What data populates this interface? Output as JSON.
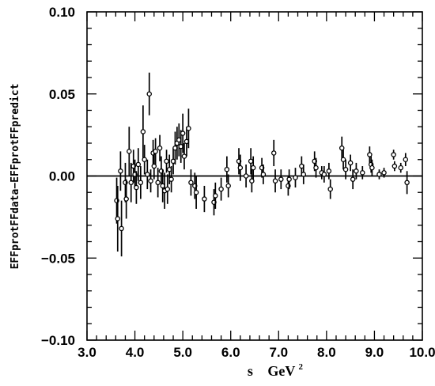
{
  "chart_data": {
    "type": "scatter",
    "xlabel": "s",
    "xunit": "GeV",
    "xunit_power": "2",
    "ylabel": "EFFprotFFdata−EFFprotFFpredict",
    "xlim": [
      3.0,
      10.0
    ],
    "ylim": [
      -0.1,
      0.1
    ],
    "xticks": [
      "3.0",
      "4.0",
      "5.0",
      "6.0",
      "7.0",
      "8.0",
      "9.0",
      "10.0"
    ],
    "yticks": [
      "0.10",
      "0.05",
      "0.00",
      "−0.05",
      "−0.10"
    ],
    "xtick_values": [
      3,
      4,
      5,
      6,
      7,
      8,
      9,
      10
    ],
    "ytick_values": [
      0.1,
      0.05,
      0.0,
      -0.05,
      -0.1
    ],
    "reference_line": 0.0,
    "grid": false,
    "points": [
      {
        "x": 3.62,
        "y": -0.015,
        "err": 0.014
      },
      {
        "x": 3.64,
        "y": -0.026,
        "err": 0.02
      },
      {
        "x": 3.7,
        "y": 0.003,
        "err": 0.012
      },
      {
        "x": 3.72,
        "y": -0.032,
        "err": 0.017
      },
      {
        "x": 3.8,
        "y": -0.004,
        "err": 0.012
      },
      {
        "x": 3.82,
        "y": -0.014,
        "err": 0.012
      },
      {
        "x": 3.88,
        "y": 0.015,
        "err": 0.015
      },
      {
        "x": 3.92,
        "y": -0.004,
        "err": 0.012
      },
      {
        "x": 3.97,
        "y": 0.006,
        "err": 0.01
      },
      {
        "x": 4.0,
        "y": 0.001,
        "err": 0.009
      },
      {
        "x": 4.03,
        "y": -0.007,
        "err": 0.01
      },
      {
        "x": 4.07,
        "y": 0.007,
        "err": 0.01
      },
      {
        "x": 4.12,
        "y": -0.004,
        "err": 0.01
      },
      {
        "x": 4.17,
        "y": 0.027,
        "err": 0.016
      },
      {
        "x": 4.2,
        "y": 0.01,
        "err": 0.009
      },
      {
        "x": 4.26,
        "y": 0.001,
        "err": 0.009
      },
      {
        "x": 4.3,
        "y": 0.05,
        "err": 0.013
      },
      {
        "x": 4.33,
        "y": -0.003,
        "err": 0.007
      },
      {
        "x": 4.38,
        "y": 0.014,
        "err": 0.008
      },
      {
        "x": 4.4,
        "y": 0.006,
        "err": 0.008
      },
      {
        "x": 4.43,
        "y": 0.015,
        "err": 0.008
      },
      {
        "x": 4.48,
        "y": -0.004,
        "err": 0.009
      },
      {
        "x": 4.52,
        "y": 0.017,
        "err": 0.008
      },
      {
        "x": 4.55,
        "y": 0.003,
        "err": 0.009
      },
      {
        "x": 4.58,
        "y": -0.006,
        "err": 0.01
      },
      {
        "x": 4.62,
        "y": -0.009,
        "err": 0.011
      },
      {
        "x": 4.66,
        "y": 0.009,
        "err": 0.007
      },
      {
        "x": 4.68,
        "y": -0.008,
        "err": 0.009
      },
      {
        "x": 4.72,
        "y": 0.004,
        "err": 0.009
      },
      {
        "x": 4.76,
        "y": -0.002,
        "err": 0.008
      },
      {
        "x": 4.8,
        "y": 0.009,
        "err": 0.008
      },
      {
        "x": 4.84,
        "y": 0.017,
        "err": 0.01
      },
      {
        "x": 4.88,
        "y": 0.02,
        "err": 0.01
      },
      {
        "x": 4.92,
        "y": 0.022,
        "err": 0.01
      },
      {
        "x": 4.96,
        "y": 0.018,
        "err": 0.01
      },
      {
        "x": 5.0,
        "y": 0.026,
        "err": 0.012
      },
      {
        "x": 5.03,
        "y": 0.012,
        "err": 0.008
      },
      {
        "x": 5.08,
        "y": 0.021,
        "err": 0.009
      },
      {
        "x": 5.12,
        "y": 0.029,
        "err": 0.012
      },
      {
        "x": 5.17,
        "y": -0.004,
        "err": 0.008
      },
      {
        "x": 5.25,
        "y": -0.006,
        "err": 0.008
      },
      {
        "x": 5.28,
        "y": -0.01,
        "err": 0.01
      },
      {
        "x": 5.45,
        "y": -0.014,
        "err": 0.008
      },
      {
        "x": 5.65,
        "y": -0.016,
        "err": 0.008
      },
      {
        "x": 5.68,
        "y": -0.012,
        "err": 0.008
      },
      {
        "x": 5.8,
        "y": -0.008,
        "err": 0.007
      },
      {
        "x": 5.92,
        "y": 0.004,
        "err": 0.008
      },
      {
        "x": 5.95,
        "y": -0.006,
        "err": 0.007
      },
      {
        "x": 6.17,
        "y": 0.009,
        "err": 0.008
      },
      {
        "x": 6.2,
        "y": 0.005,
        "err": 0.008
      },
      {
        "x": 6.32,
        "y": 0.0,
        "err": 0.007
      },
      {
        "x": 6.42,
        "y": 0.009,
        "err": 0.008
      },
      {
        "x": 6.44,
        "y": -0.003,
        "err": 0.007
      },
      {
        "x": 6.47,
        "y": 0.005,
        "err": 0.007
      },
      {
        "x": 6.65,
        "y": 0.005,
        "err": 0.006
      },
      {
        "x": 6.68,
        "y": 0.001,
        "err": 0.006
      },
      {
        "x": 6.9,
        "y": 0.014,
        "err": 0.008
      },
      {
        "x": 6.93,
        "y": -0.003,
        "err": 0.007
      },
      {
        "x": 7.05,
        "y": -0.002,
        "err": 0.006
      },
      {
        "x": 7.2,
        "y": -0.006,
        "err": 0.006
      },
      {
        "x": 7.22,
        "y": -0.002,
        "err": 0.006
      },
      {
        "x": 7.35,
        "y": -0.001,
        "err": 0.006
      },
      {
        "x": 7.48,
        "y": 0.006,
        "err": 0.006
      },
      {
        "x": 7.52,
        "y": 0.001,
        "err": 0.006
      },
      {
        "x": 7.75,
        "y": 0.009,
        "err": 0.006
      },
      {
        "x": 7.78,
        "y": 0.005,
        "err": 0.006
      },
      {
        "x": 7.9,
        "y": 0.002,
        "err": 0.004
      },
      {
        "x": 7.95,
        "y": 0.001,
        "err": 0.005
      },
      {
        "x": 8.05,
        "y": 0.003,
        "err": 0.005
      },
      {
        "x": 8.08,
        "y": -0.008,
        "err": 0.006
      },
      {
        "x": 8.32,
        "y": 0.017,
        "err": 0.007
      },
      {
        "x": 8.35,
        "y": 0.01,
        "err": 0.006
      },
      {
        "x": 8.4,
        "y": 0.004,
        "err": 0.006
      },
      {
        "x": 8.5,
        "y": 0.008,
        "err": 0.005
      },
      {
        "x": 8.55,
        "y": -0.002,
        "err": 0.006
      },
      {
        "x": 8.62,
        "y": 0.003,
        "err": 0.005
      },
      {
        "x": 8.75,
        "y": 0.002,
        "err": 0.004
      },
      {
        "x": 8.9,
        "y": 0.013,
        "err": 0.005
      },
      {
        "x": 8.93,
        "y": 0.007,
        "err": 0.005
      },
      {
        "x": 8.95,
        "y": 0.005,
        "err": 0.005
      },
      {
        "x": 9.1,
        "y": 0.001,
        "err": 0.003
      },
      {
        "x": 9.2,
        "y": 0.002,
        "err": 0.003
      },
      {
        "x": 9.4,
        "y": 0.013,
        "err": 0.003
      },
      {
        "x": 9.42,
        "y": 0.006,
        "err": 0.003
      },
      {
        "x": 9.55,
        "y": 0.005,
        "err": 0.003
      },
      {
        "x": 9.65,
        "y": 0.01,
        "err": 0.004
      },
      {
        "x": 9.68,
        "y": -0.004,
        "err": 0.007
      }
    ]
  }
}
